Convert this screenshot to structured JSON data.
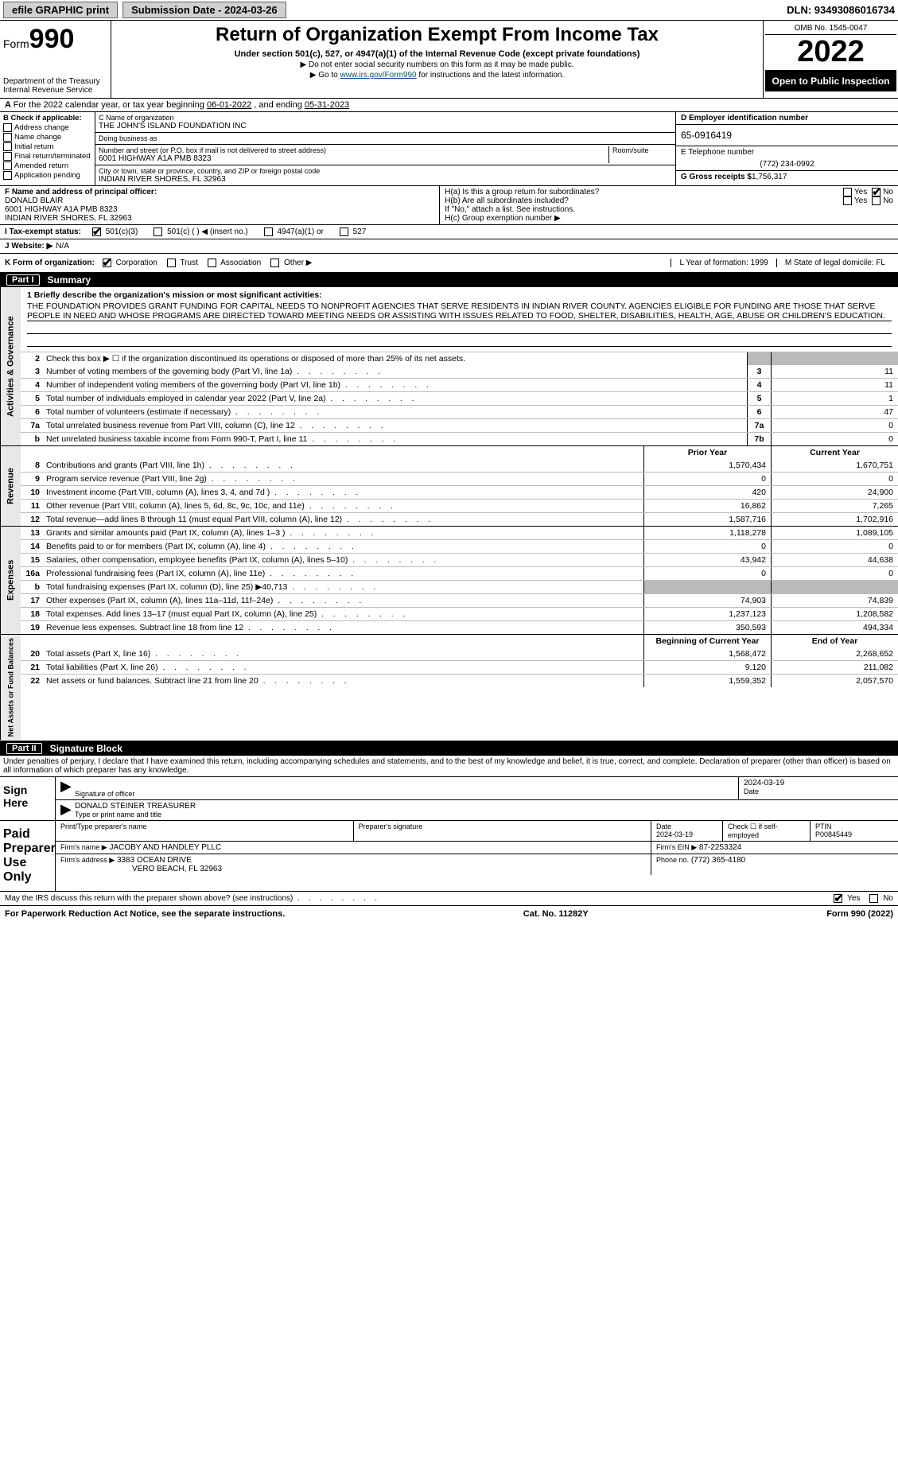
{
  "topbar": {
    "efile": "efile GRAPHIC print",
    "subdate_label": "Submission Date - 2024-03-26",
    "dln": "DLN: 93493086016734"
  },
  "header": {
    "form_word": "Form",
    "form_num": "990",
    "dept": "Department of the Treasury",
    "irs": "Internal Revenue Service",
    "title": "Return of Organization Exempt From Income Tax",
    "sub1": "Under section 501(c), 527, or 4947(a)(1) of the Internal Revenue Code (except private foundations)",
    "sub2": "▶ Do not enter social security numbers on this form as it may be made public.",
    "sub3_pre": "▶ Go to ",
    "sub3_link": "www.irs.gov/Form990",
    "sub3_post": " for instructions and the latest information.",
    "omb": "OMB No. 1545-0047",
    "year": "2022",
    "open": "Open to Public Inspection"
  },
  "A": {
    "text_pre": "For the 2022 calendar year, or tax year beginning ",
    "begin": "06-01-2022",
    "mid": " , and ending ",
    "end": "05-31-2023"
  },
  "B": {
    "label": "B Check if applicable:",
    "opts": [
      "Address change",
      "Name change",
      "Initial return",
      "Final return/terminated",
      "Amended return",
      "Application pending"
    ]
  },
  "C": {
    "name_label": "C Name of organization",
    "name": "THE JOHN'S ISLAND FOUNDATION INC",
    "dba_label": "Doing business as",
    "dba": "",
    "addr_label": "Number and street (or P.O. box if mail is not delivered to street address)",
    "room_label": "Room/suite",
    "addr": "6001 HIGHWAY A1A PMB 8323",
    "city_label": "City or town, state or province, country, and ZIP or foreign postal code",
    "city": "INDIAN RIVER SHORES, FL  32963"
  },
  "D": {
    "label": "D Employer identification number",
    "ein": "65-0916419",
    "E_label": "E Telephone number",
    "E_val": "(772) 234-0992",
    "G_label": "G Gross receipts $",
    "G_val": "1,756,317"
  },
  "F": {
    "label": "F  Name and address of principal officer:",
    "name": "DONALD BLAIR",
    "addr1": "6001 HIGHWAY A1A PMB 8323",
    "addr2": "INDIAN RIVER SHORES, FL  32963"
  },
  "H": {
    "a": "H(a)  Is this a group return for subordinates?",
    "b": "H(b)  Are all subordinates included?",
    "b2": "If \"No,\" attach a list. See instructions.",
    "c": "H(c)  Group exemption number ▶",
    "yes": "Yes",
    "no": "No"
  },
  "I": {
    "label": "I   Tax-exempt status:",
    "o1": "501(c)(3)",
    "o2": "501(c) (   ) ◀ (insert no.)",
    "o3": "4947(a)(1) or",
    "o4": "527"
  },
  "J": {
    "label": "J   Website: ▶",
    "val": " N/A"
  },
  "K": {
    "label": "K Form of organization:",
    "opts": [
      "Corporation",
      "Trust",
      "Association",
      "Other ▶"
    ],
    "L": "L Year of formation: 1999",
    "M": "M State of legal domicile: FL"
  },
  "partI": {
    "title": "Part I",
    "name": "Summary",
    "brief_label": "1  Briefly describe the organization's mission or most significant activities:",
    "brief": "THE FOUNDATION PROVIDES GRANT FUNDING FOR CAPITAL NEEDS TO NONPROFIT AGENCIES THAT SERVE RESIDENTS IN INDIAN RIVER COUNTY. AGENCIES ELIGIBLE FOR FUNDING ARE THOSE THAT SERVE PEOPLE IN NEED AND WHOSE PROGRAMS ARE DIRECTED TOWARD MEETING NEEDS OR ASSISTING WITH ISSUES RELATED TO FOOD, SHELTER, DISABILITIES, HEALTH, AGE, ABUSE OR CHILDREN'S EDUCATION.",
    "line2": "Check this box ▶ ☐  if the organization discontinued its operations or disposed of more than 25% of its net assets.",
    "gov_rows": [
      {
        "n": "3",
        "t": "Number of voting members of the governing body (Part VI, line 1a)",
        "box": "3",
        "v": "11"
      },
      {
        "n": "4",
        "t": "Number of independent voting members of the governing body (Part VI, line 1b)",
        "box": "4",
        "v": "11"
      },
      {
        "n": "5",
        "t": "Total number of individuals employed in calendar year 2022 (Part V, line 2a)",
        "box": "5",
        "v": "1"
      },
      {
        "n": "6",
        "t": "Total number of volunteers (estimate if necessary)",
        "box": "6",
        "v": "47"
      },
      {
        "n": "7a",
        "t": "Total unrelated business revenue from Part VIII, column (C), line 12",
        "box": "7a",
        "v": "0"
      },
      {
        "n": "b",
        "t": "Net unrelated business taxable income from Form 990-T, Part I, line 11",
        "box": "7b",
        "v": "0"
      }
    ],
    "col_hdr_prior": "Prior Year",
    "col_hdr_curr": "Current Year",
    "rev_rows": [
      {
        "n": "8",
        "t": "Contributions and grants (Part VIII, line 1h)",
        "p": "1,570,434",
        "c": "1,670,751"
      },
      {
        "n": "9",
        "t": "Program service revenue (Part VIII, line 2g)",
        "p": "0",
        "c": "0"
      },
      {
        "n": "10",
        "t": "Investment income (Part VIII, column (A), lines 3, 4, and 7d )",
        "p": "420",
        "c": "24,900"
      },
      {
        "n": "11",
        "t": "Other revenue (Part VIII, column (A), lines 5, 6d, 8c, 9c, 10c, and 11e)",
        "p": "16,862",
        "c": "7,265"
      },
      {
        "n": "12",
        "t": "Total revenue—add lines 8 through 11 (must equal Part VIII, column (A), line 12)",
        "p": "1,587,716",
        "c": "1,702,916"
      }
    ],
    "exp_rows": [
      {
        "n": "13",
        "t": "Grants and similar amounts paid (Part IX, column (A), lines 1–3 )",
        "p": "1,118,278",
        "c": "1,089,105"
      },
      {
        "n": "14",
        "t": "Benefits paid to or for members (Part IX, column (A), line 4)",
        "p": "0",
        "c": "0"
      },
      {
        "n": "15",
        "t": "Salaries, other compensation, employee benefits (Part IX, column (A), lines 5–10)",
        "p": "43,942",
        "c": "44,638"
      },
      {
        "n": "16a",
        "t": "Professional fundraising fees (Part IX, column (A), line 11e)",
        "p": "0",
        "c": "0"
      },
      {
        "n": "b",
        "t": "Total fundraising expenses (Part IX, column (D), line 25) ▶40,713",
        "p": "",
        "c": "",
        "shade": true
      },
      {
        "n": "17",
        "t": "Other expenses (Part IX, column (A), lines 11a–11d, 11f–24e)",
        "p": "74,903",
        "c": "74,839"
      },
      {
        "n": "18",
        "t": "Total expenses. Add lines 13–17 (must equal Part IX, column (A), line 25)",
        "p": "1,237,123",
        "c": "1,208,582"
      },
      {
        "n": "19",
        "t": "Revenue less expenses. Subtract line 18 from line 12",
        "p": "350,593",
        "c": "494,334"
      }
    ],
    "na_hdr_prior": "Beginning of Current Year",
    "na_hdr_curr": "End of Year",
    "na_rows": [
      {
        "n": "20",
        "t": "Total assets (Part X, line 16)",
        "p": "1,568,472",
        "c": "2,268,652"
      },
      {
        "n": "21",
        "t": "Total liabilities (Part X, line 26)",
        "p": "9,120",
        "c": "211,082"
      },
      {
        "n": "22",
        "t": "Net assets or fund balances. Subtract line 21 from line 20",
        "p": "1,559,352",
        "c": "2,057,570"
      }
    ]
  },
  "partII": {
    "title": "Part II",
    "name": "Signature Block",
    "pen": "Under penalties of perjury, I declare that I have examined this return, including accompanying schedules and statements, and to the best of my knowledge and belief, it is true, correct, and complete. Declaration of preparer (other than officer) is based on all information of which preparer has any knowledge.",
    "sign_here": "Sign Here",
    "sig_officer": "Signature of officer",
    "sig_date": "2024-03-19",
    "date_lab": "Date",
    "officer_name": "DONALD STEINER  TREASURER",
    "officer_lab": "Type or print name and title",
    "paid": "Paid Preparer Use Only",
    "pp_name_lab": "Print/Type preparer's name",
    "pp_sig_lab": "Preparer's signature",
    "pp_date_lab": "Date",
    "pp_date": "2024-03-19",
    "pp_check": "Check ☐ if self-employed",
    "ptin_lab": "PTIN",
    "ptin": "P00845449",
    "firm_name_lab": "Firm's name    ▶",
    "firm_name": "JACOBY AND HANDLEY PLLC",
    "firm_ein_lab": "Firm's EIN ▶",
    "firm_ein": "87-2253324",
    "firm_addr_lab": "Firm's address ▶",
    "firm_addr1": "3383 OCEAN DRIVE",
    "firm_addr2": "VERO BEACH, FL  32963",
    "phone_lab": "Phone no.",
    "phone": "(772) 365-4180",
    "may": "May the IRS discuss this return with the preparer shown above? (see instructions)",
    "yes": "Yes",
    "no": "No"
  },
  "footer": {
    "left": "For Paperwork Reduction Act Notice, see the separate instructions.",
    "mid": "Cat. No. 11282Y",
    "right": "Form 990 (2022)"
  }
}
